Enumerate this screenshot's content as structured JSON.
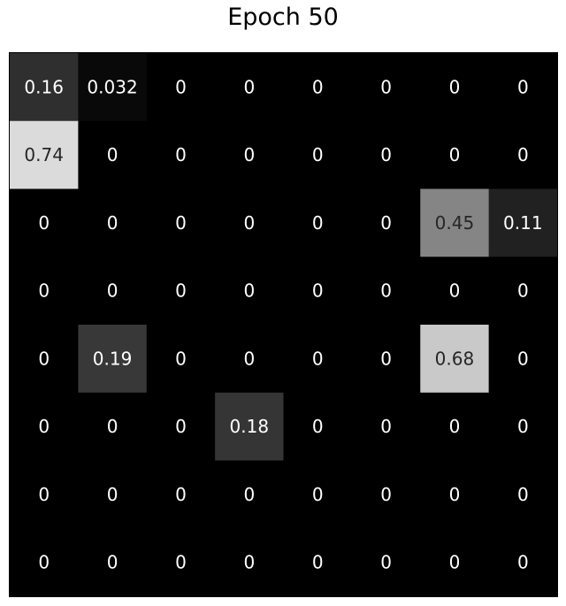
{
  "chart_data": {
    "type": "heatmap",
    "title": "Epoch 50",
    "xlabel": "",
    "ylabel": "",
    "colormap": "gray",
    "value_range": [
      0,
      0.74
    ],
    "cell_text_light": "#ffffff",
    "cell_text_dark": "#262626",
    "frame_color": "#000000",
    "values": [
      [
        0.16,
        0.032,
        0,
        0,
        0,
        0,
        0,
        0
      ],
      [
        0.74,
        0,
        0,
        0,
        0,
        0,
        0,
        0
      ],
      [
        0,
        0,
        0,
        0,
        0,
        0,
        0.45,
        0.11
      ],
      [
        0,
        0,
        0,
        0,
        0,
        0,
        0,
        0
      ],
      [
        0,
        0.19,
        0,
        0,
        0,
        0,
        0.68,
        0
      ],
      [
        0,
        0,
        0,
        0.18,
        0,
        0,
        0,
        0
      ],
      [
        0,
        0,
        0,
        0,
        0,
        0,
        0,
        0
      ],
      [
        0,
        0,
        0,
        0,
        0,
        0,
        0,
        0
      ]
    ],
    "labels": [
      [
        "0.16",
        "0.032",
        "0",
        "0",
        "0",
        "0",
        "0",
        "0"
      ],
      [
        "0.74",
        "0",
        "0",
        "0",
        "0",
        "0",
        "0",
        "0"
      ],
      [
        "0",
        "0",
        "0",
        "0",
        "0",
        "0",
        "0.45",
        "0.11"
      ],
      [
        "0",
        "0",
        "0",
        "0",
        "0",
        "0",
        "0",
        "0"
      ],
      [
        "0",
        "0.19",
        "0",
        "0",
        "0",
        "0",
        "0.68",
        "0"
      ],
      [
        "0",
        "0",
        "0",
        "0.18",
        "0",
        "0",
        "0",
        "0"
      ],
      [
        "0",
        "0",
        "0",
        "0",
        "0",
        "0",
        "0",
        "0"
      ],
      [
        "0",
        "0",
        "0",
        "0",
        "0",
        "0",
        "0",
        "0"
      ]
    ]
  }
}
